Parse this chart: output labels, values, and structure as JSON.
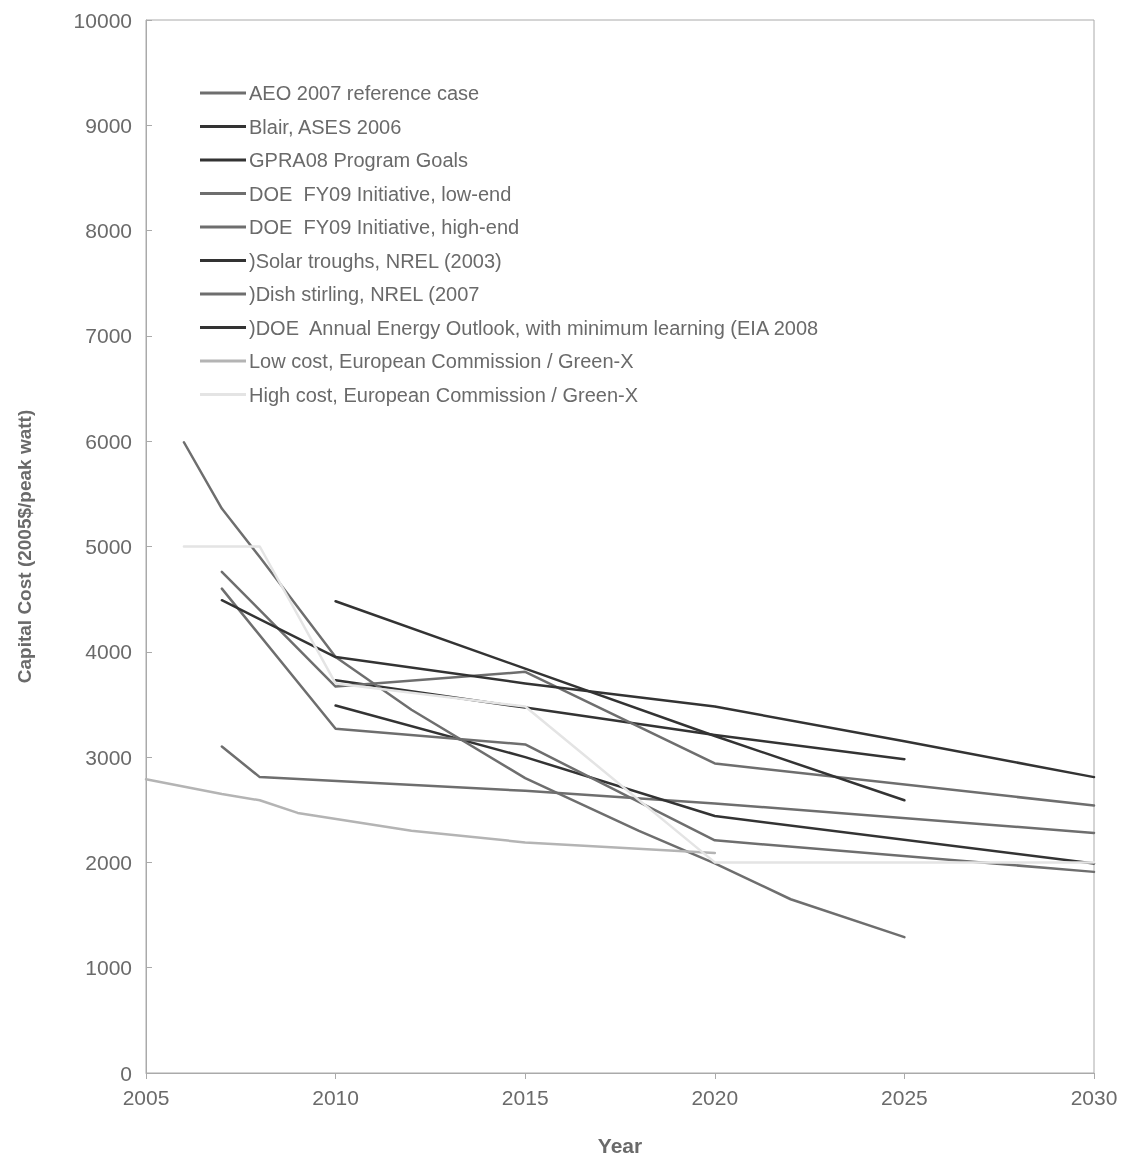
{
  "chart_data": {
    "type": "line",
    "xlabel": "Year",
    "ylabel": "Capital Cost (2005$/peak watt)",
    "xlim": [
      2005,
      2030
    ],
    "xticks": [
      2005,
      2010,
      2015,
      2020,
      2025,
      2030
    ],
    "ylim": [
      0,
      10000
    ],
    "yticks": [
      0,
      1000,
      2000,
      3000,
      4000,
      5000,
      6000,
      7000,
      8000,
      9000,
      10000
    ],
    "grid": false,
    "legend": "top left",
    "marker": "none",
    "line_style": "solid",
    "series": [
      {
        "name": "AEO 2007 reference case",
        "color": "#6e6e6e",
        "x": [
          2007,
          2008,
          2015,
          2020,
          2030
        ],
        "values": [
          3100,
          2810,
          2680,
          2560,
          2280
        ]
      },
      {
        "name": "Blair, ASES 2006",
        "color": "#333333",
        "x": [
          2010,
          2015,
          2020,
          2025
        ],
        "values": [
          3730,
          3470,
          3210,
          2980
        ]
      },
      {
        "name": "GPRA08 Program Goals",
        "color": "#333333",
        "x": [
          2010,
          2015,
          2020,
          2030
        ],
        "values": [
          3490,
          3000,
          2440,
          1990
        ]
      },
      {
        "name": "DOE  FY09 Initiative, low-end",
        "color": "#6e6e6e",
        "x": [
          2007,
          2010,
          2015,
          2020,
          2030
        ],
        "values": [
          4600,
          3270,
          3120,
          2210,
          1910
        ]
      },
      {
        "name": "DOE  FY09 Initiative, high-end",
        "color": "#6e6e6e",
        "x": [
          2007,
          2010,
          2015,
          2020,
          2030
        ],
        "values": [
          4760,
          3670,
          3810,
          2940,
          2540
        ]
      },
      {
        "name": ")Solar troughs, NREL (2003)",
        "color": "#333333",
        "x": [
          2010,
          2015,
          2020,
          2025
        ],
        "values": [
          4480,
          3840,
          3200,
          2590
        ]
      },
      {
        "name": ")Dish stirling, NREL (2007",
        "color": "#6e6e6e",
        "x": [
          2006,
          2007,
          2008,
          2010,
          2012,
          2015,
          2018,
          2020,
          2022,
          2025
        ],
        "values": [
          5990,
          5360,
          4900,
          3950,
          3450,
          2800,
          2300,
          1990,
          1650,
          1290
        ]
      },
      {
        "name": ")DOE  Annual Energy Outlook, with minimum learning (EIA 2008",
        "color": "#333333",
        "x": [
          2007,
          2010,
          2015,
          2020,
          2025,
          2030
        ],
        "values": [
          4490,
          3950,
          3700,
          3480,
          3150,
          2810
        ]
      },
      {
        "name": "Low cost, European Commission / Green-X",
        "color": "#b4b4b4",
        "x": [
          2005,
          2007,
          2008,
          2009,
          2012,
          2015,
          2020
        ],
        "values": [
          2790,
          2650,
          2590,
          2470,
          2300,
          2190,
          2090
        ]
      },
      {
        "name": "High cost, European Commission / Green-X",
        "color": "#e4e4e4",
        "x": [
          2006,
          2008,
          2010,
          2015,
          2020,
          2030
        ],
        "values": [
          5000,
          5000,
          3700,
          3480,
          2000,
          2000
        ]
      }
    ]
  }
}
